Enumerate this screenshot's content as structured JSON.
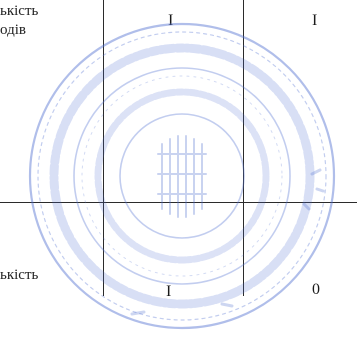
{
  "document": {
    "left_text_top_line1": "ькість",
    "left_text_top_line2": "одів",
    "left_text_bottom": "ькість",
    "mark_top_col1": "I",
    "mark_top_col2": "I",
    "mark_bottom_col1": "I",
    "mark_bottom_col2": "0"
  },
  "stamp": {
    "color": "#4f6fd0"
  }
}
